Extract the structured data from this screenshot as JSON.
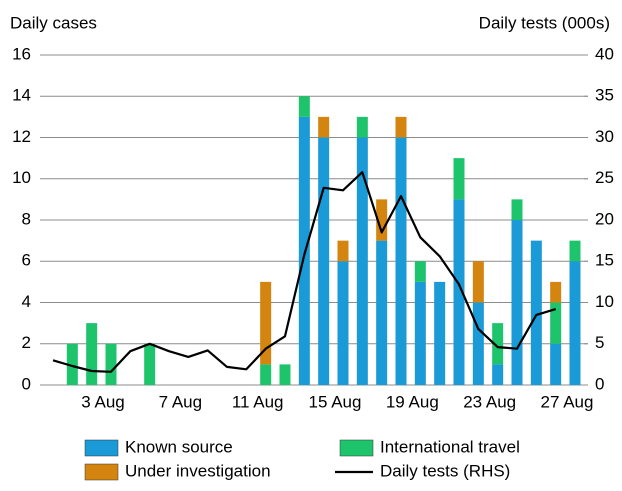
{
  "chart_data": {
    "type": "bar",
    "stacked": true,
    "y_label": "Daily cases",
    "y2_label": "Daily tests (000s)",
    "categories": [
      null,
      null,
      null,
      "3 Aug",
      null,
      null,
      null,
      "7 Aug",
      null,
      null,
      null,
      "11 Aug",
      null,
      null,
      null,
      "15 Aug",
      null,
      null,
      null,
      "19 Aug",
      null,
      null,
      null,
      "23 Aug",
      null,
      null,
      null,
      "27 Aug"
    ],
    "series": [
      {
        "name": "Known source",
        "color": "#1a9ad6",
        "type": "bar",
        "values": [
          0,
          0,
          0,
          0,
          0,
          0,
          0,
          0,
          0,
          0,
          0,
          0,
          0,
          13,
          12,
          6,
          12,
          7,
          12,
          5,
          5,
          9,
          4,
          1,
          8,
          7,
          2,
          6
        ]
      },
      {
        "name": "International travel",
        "color": "#1ec46c",
        "type": "bar",
        "values": [
          0,
          2,
          3,
          2,
          0,
          2,
          0,
          0,
          0,
          0,
          0,
          1,
          1,
          1,
          0,
          0,
          1,
          0,
          0,
          1,
          0,
          2,
          0,
          2,
          1,
          0,
          2,
          1
        ]
      },
      {
        "name": "Under investigation",
        "color": "#d4850f",
        "type": "bar",
        "values": [
          0,
          0,
          0,
          0,
          0,
          0,
          0,
          0,
          0,
          0,
          0,
          4,
          0,
          0,
          1,
          1,
          0,
          2,
          1,
          0,
          0,
          0,
          2,
          0,
          0,
          0,
          1,
          0
        ]
      },
      {
        "name": "Daily tests (RHS)",
        "color": "#000000",
        "type": "line",
        "axis": "y2",
        "values": [
          3.0,
          2.3,
          1.7,
          1.6,
          4.1,
          5.0,
          4.1,
          3.4,
          4.2,
          2.2,
          1.9,
          4.4,
          5.9,
          15.8,
          23.9,
          23.6,
          25.8,
          18.5,
          22.9,
          17.9,
          15.6,
          12.2,
          6.8,
          4.6,
          4.4,
          8.5,
          9.2,
          null
        ]
      }
    ],
    "ylim": [
      0,
      16
    ],
    "yticks": [
      0,
      2,
      4,
      6,
      8,
      10,
      12,
      14,
      16
    ],
    "y2lim": [
      0,
      40
    ],
    "y2ticks": [
      0,
      5,
      10,
      15,
      20,
      25,
      30,
      35,
      40
    ],
    "grid": true
  }
}
